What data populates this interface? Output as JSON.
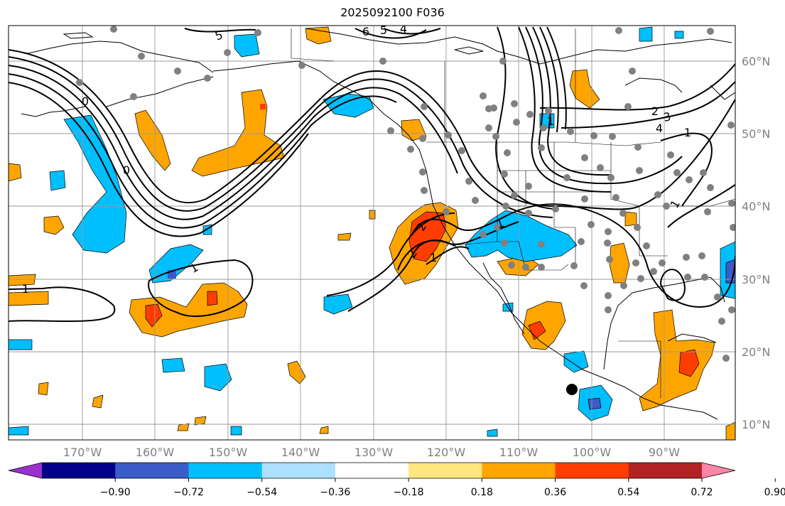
{
  "title": "2025092100 F036",
  "lat_labels": [
    "60°N",
    "50°N",
    "40°N",
    "30°N",
    "20°N",
    "10°N"
  ],
  "lon_labels": [
    "170°W",
    "160°W",
    "150°W",
    "140°W",
    "130°W",
    "120°W",
    "110°W",
    "100°W",
    "90°W"
  ],
  "colorbar": {
    "ticks": [
      "−0.90",
      "−0.72",
      "−0.54",
      "−0.36",
      "−0.18",
      "0.18",
      "0.36",
      "0.54",
      "0.72",
      "0.90"
    ],
    "colors": [
      "#9932CC",
      "#00008B",
      "#3A5BC8",
      "#00BFFF",
      "#ADDFFF",
      "#FFFFFF",
      "#FFE680",
      "#FFA500",
      "#FF3D00",
      "#B22222",
      "#FF85A8"
    ]
  },
  "contour_labels": [
    "5",
    "6",
    "5",
    "4",
    "0",
    "0",
    "1",
    "1",
    "2",
    "1",
    "2",
    "1",
    "1",
    "2",
    "3",
    "4",
    "1",
    "1"
  ],
  "colors": {
    "land_edge": "#000000",
    "grid": "#999999",
    "station": "#808080",
    "marker": "#000000"
  }
}
